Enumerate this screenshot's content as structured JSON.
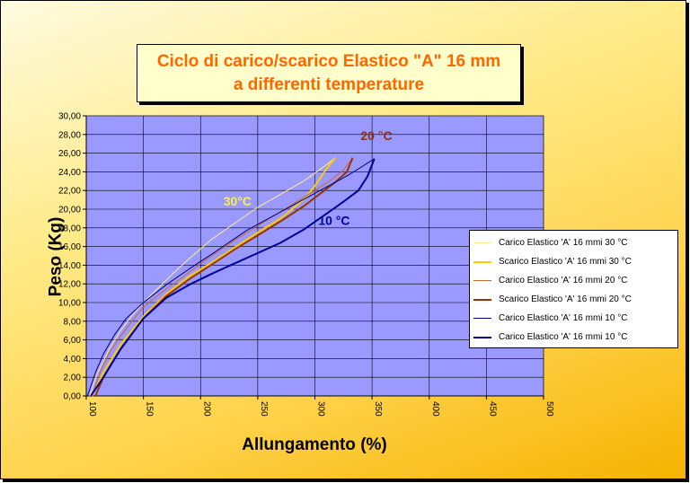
{
  "title": {
    "line1": "Ciclo di carico/scarico Elastico \"A\" 16 mm",
    "line2": "a differenti temperature"
  },
  "chart_data": {
    "type": "line",
    "xlabel": "Allungamento (%)",
    "ylabel": "Peso (Kg)",
    "xlim": [
      100,
      500
    ],
    "ylim": [
      0,
      30
    ],
    "x_ticks": [
      "100",
      "150",
      "200",
      "250",
      "300",
      "350",
      "400",
      "450",
      "500"
    ],
    "y_ticks": [
      "0,00",
      "2,00",
      "4,00",
      "6,00",
      "8,00",
      "10,00",
      "12,00",
      "14,00",
      "16,00",
      "18,00",
      "20,00",
      "22,00",
      "24,00",
      "26,00",
      "28,00",
      "30,00"
    ],
    "grid": true,
    "legend_position": "right",
    "plot_background": "#9999ff",
    "series": [
      {
        "name": "Carico Elastico 'A' 16 mmi 30 °C",
        "color": "#ffee88",
        "width": 1,
        "x": [
          103,
          110,
          120,
          130,
          140,
          150,
          160,
          175,
          190,
          210,
          230,
          250,
          270,
          290,
          305,
          318
        ],
        "y": [
          0,
          2.5,
          5.0,
          7.0,
          8.6,
          10.0,
          11.2,
          13.0,
          14.7,
          16.8,
          18.5,
          20.2,
          21.6,
          23.0,
          24.3,
          25.5
        ]
      },
      {
        "name": "Scarico Elastico 'A' 16 mmi 30 °C",
        "color": "#ffcc00",
        "width": 2,
        "x": [
          318,
          310,
          300,
          290,
          280,
          270,
          250,
          230,
          210,
          190,
          170,
          150,
          130,
          115,
          105
        ],
        "y": [
          25.5,
          24.3,
          22.5,
          21.0,
          20.0,
          19.0,
          17.5,
          15.9,
          14.3,
          12.8,
          10.9,
          8.5,
          5.5,
          2.5,
          0
        ]
      },
      {
        "name": "Carico Elastico 'A' 16 mmi 20 °C",
        "color": "#cc6633",
        "width": 1,
        "x": [
          105,
          112,
          120,
          130,
          140,
          150,
          165,
          185,
          205,
          230,
          255,
          280,
          300,
          315,
          325,
          333
        ],
        "y": [
          0,
          2.5,
          4.6,
          6.4,
          8.0,
          9.5,
          11.0,
          12.8,
          14.6,
          16.7,
          18.6,
          20.5,
          22.0,
          23.2,
          24.2,
          25.5
        ]
      },
      {
        "name": "Scarico Elastico 'A' 16 mmi 20 °C",
        "color": "#993300",
        "width": 2,
        "x": [
          333,
          328,
          318,
          305,
          290,
          270,
          250,
          230,
          210,
          190,
          170,
          150,
          130,
          115,
          108
        ],
        "y": [
          25.5,
          24.0,
          22.9,
          21.7,
          20.3,
          18.7,
          17.2,
          15.7,
          14.1,
          12.5,
          10.7,
          8.3,
          5.0,
          2.0,
          0
        ]
      },
      {
        "name": "Carico Elastico 'A' 16 mmi 10 °C",
        "color": "#000080",
        "width": 1,
        "x": [
          101,
          108,
          115,
          125,
          135,
          150,
          170,
          190,
          210,
          240,
          270,
          300,
          330,
          352
        ],
        "y": [
          0,
          2.5,
          4.5,
          6.6,
          8.3,
          10.0,
          11.9,
          13.6,
          15.2,
          17.7,
          19.7,
          21.7,
          23.7,
          25.4
        ]
      },
      {
        "name": "Carico Elastico 'A' 16 mmi 10 °C",
        "color": "#000099",
        "width": 2,
        "x": [
          352,
          346,
          338,
          325,
          310,
          290,
          270,
          250,
          230,
          210,
          190,
          170,
          150,
          130,
          115,
          104
        ],
        "y": [
          25.4,
          23.5,
          22.0,
          20.8,
          19.5,
          17.8,
          16.4,
          15.3,
          14.2,
          13.1,
          11.9,
          10.5,
          8.3,
          5.0,
          2.0,
          0
        ]
      }
    ],
    "annotations": [
      {
        "text": "20 °C",
        "color": "#993300",
        "x": 340,
        "y": 27.4
      },
      {
        "text": "30°C",
        "color": "#ffee44",
        "x": 220,
        "y": 20.4
      },
      {
        "text": "10 °C",
        "color": "#000099",
        "x": 303,
        "y": 18.3
      }
    ]
  }
}
